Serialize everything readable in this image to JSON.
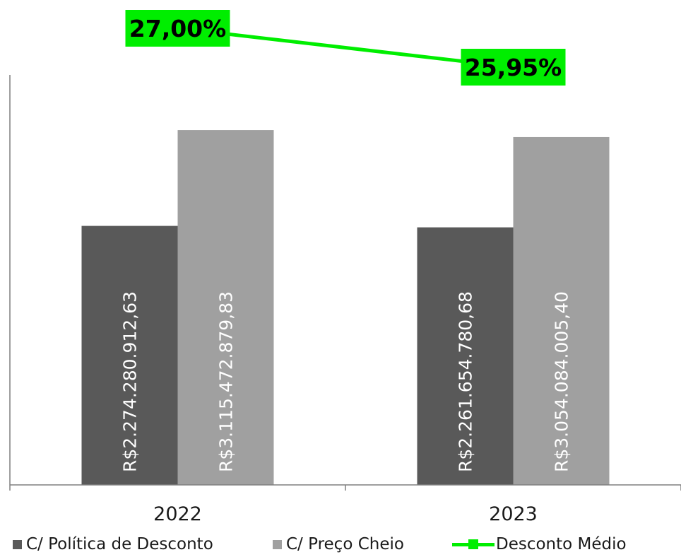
{
  "chart_data": {
    "type": "bar",
    "categories": [
      "2022",
      "2023"
    ],
    "series": [
      {
        "name": "C/ Política de Desconto",
        "values": [
          2274280912.63,
          2261654780.68
        ],
        "labels": [
          "R$2.274.280.912,63",
          "R$2.261.654.780,68"
        ],
        "color": "#595959"
      },
      {
        "name": "C/ Preço Cheio",
        "values": [
          3115472879.83,
          3054084005.4
        ],
        "labels": [
          "R$3.115.472.879,83",
          "R$3.054.084.005,40"
        ],
        "color": "#a0a0a0"
      }
    ],
    "line_series": {
      "name": "Desconto Médio",
      "values": [
        27.0,
        25.95
      ],
      "labels": [
        "27,00%",
        "25,95%"
      ],
      "color": "#00ee00"
    },
    "ylim": [
      0,
      3600000000
    ],
    "grid": false,
    "legend": "bottom"
  }
}
